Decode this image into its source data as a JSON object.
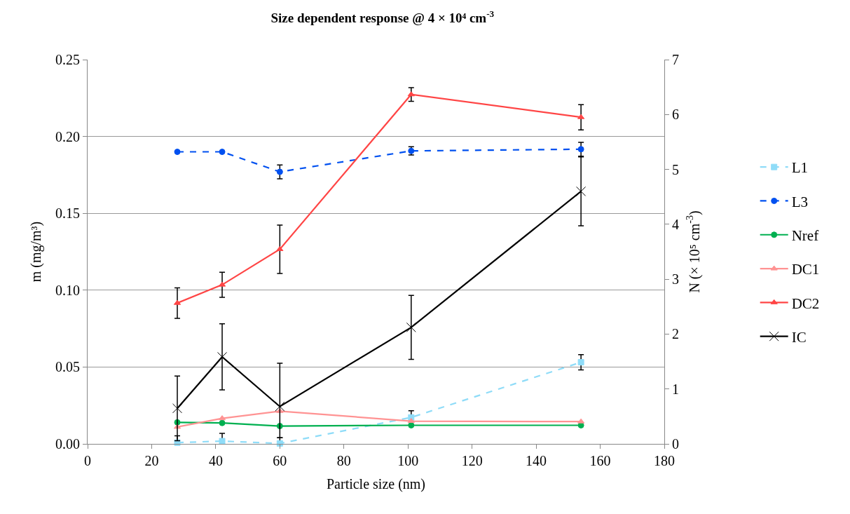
{
  "chart_data": {
    "type": "line",
    "title": "Size dependent response @ 4 × 10⁴ cm$^{-3}$",
    "xlabel": "Particle size (nm)",
    "ylabel": "m (mg/m³)",
    "y2label": "N (× 10⁵ cm$^{-3}$)",
    "x": [
      28,
      42,
      60,
      101,
      154
    ],
    "xlim": [
      0,
      180
    ],
    "xticks": [
      0,
      20,
      40,
      60,
      80,
      100,
      120,
      140,
      160,
      180
    ],
    "ylim": [
      0,
      0.25
    ],
    "yticks": [
      {
        "value": 0,
        "label": "0.00"
      },
      {
        "value": 0.05,
        "label": "0.05"
      },
      {
        "value": 0.1,
        "label": "0.10"
      },
      {
        "value": 0.15,
        "label": "0.15"
      },
      {
        "value": 0.2,
        "label": "0.20"
      },
      {
        "value": 0.25,
        "label": "0.25"
      }
    ],
    "y2lim": [
      0,
      7
    ],
    "y2ticks": [
      0,
      1,
      2,
      3,
      4,
      5,
      6,
      7
    ],
    "grid": "y",
    "legend": "right",
    "series": [
      {
        "name": "L1",
        "color": "#8fdcf8",
        "marker": "square",
        "line_style": "dashed",
        "values": [
          0.0008,
          0.0018,
          0.0003,
          0.0172,
          0.0531
        ],
        "errors": [
          [
            0,
            0.0052
          ],
          [
            0,
            0.0068
          ],
          [
            0,
            0.004
          ],
          0.0044,
          0.005
        ]
      },
      {
        "name": "L3",
        "color": "#0050f0",
        "marker": "circle",
        "line_style": "dashed",
        "values": [
          0.19,
          0.19,
          0.177,
          0.1906,
          0.1917
        ],
        "errors": [
          null,
          null,
          0.0045,
          0.0027,
          0.0045
        ]
      },
      {
        "name": "Nref",
        "color": "#00b050",
        "marker": "circle",
        "line_style": "solid",
        "values": [
          0.014,
          0.0136,
          0.0116,
          0.0121,
          0.0121
        ]
      },
      {
        "name": "DC1",
        "color": "#ff9393",
        "marker": "triangle",
        "line_style": "solid",
        "values": [
          0.011,
          0.0166,
          0.0213,
          0.0148,
          0.0145
        ]
      },
      {
        "name": "DC2",
        "color": "#ff4545",
        "marker": "triangle",
        "line_style": "solid",
        "values": [
          0.0916,
          0.1035,
          0.1266,
          0.2273,
          0.2125
        ],
        "errors": [
          0.0099,
          0.0082,
          0.0157,
          0.0044,
          0.0082
        ]
      },
      {
        "name": "IC",
        "color": "#000000",
        "marker": "cross",
        "line_style": "solid",
        "values": [
          0.0231,
          0.0566,
          0.0243,
          0.0758,
          0.1643
        ],
        "errors": [
          0.021,
          0.0215,
          [
            0.004,
            0.0525
          ],
          0.0208,
          0.0224
        ]
      }
    ]
  }
}
